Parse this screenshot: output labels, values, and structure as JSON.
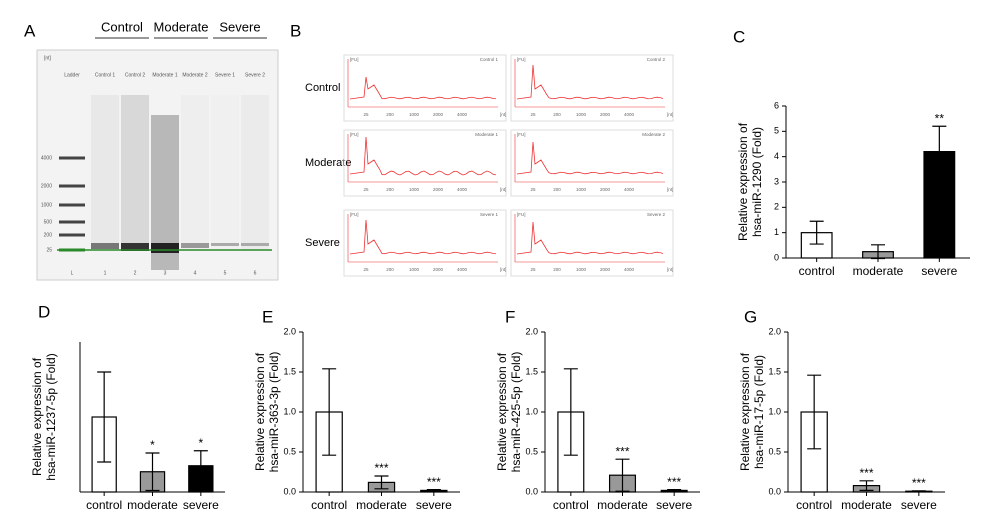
{
  "gel": {
    "label": "A",
    "unit": "[nt]",
    "groups": [
      "Control",
      "Moderate",
      "Severe"
    ],
    "lanes": [
      "Ladder",
      "Control 1",
      "Control 2",
      "Moderate 1",
      "Moderate 2",
      "Severe 1",
      "Severe 2"
    ],
    "lane_numbers": [
      "L",
      "1",
      "2",
      "3",
      "4",
      "5",
      "6"
    ],
    "ladder": [
      "4000",
      "2000",
      "1000",
      "500",
      "200",
      "25"
    ]
  },
  "traces": {
    "label": "B",
    "rows": [
      "Control",
      "Moderate",
      "Severe"
    ],
    "titles": [
      "Control 1",
      "Control 2",
      "Moderate 1",
      "Moderate 2",
      "Severe 1",
      "Severe 2"
    ],
    "y_unit": "[FU]",
    "x_unit": "[nt]",
    "x_ticks": [
      "25",
      "200",
      "1000",
      "2000",
      "4000"
    ]
  },
  "chart_data": [
    {
      "type": "bar",
      "label": "C",
      "ylabel": [
        "Relative expression of",
        "hsa-miR-1290 (Fold)"
      ],
      "categories": [
        "control",
        "moderate",
        "severe"
      ],
      "values": [
        1.0,
        0.25,
        4.2
      ],
      "errors": [
        0.45,
        0.27,
        1.0
      ],
      "colors": [
        "#ffffff",
        "#999999",
        "#000000"
      ],
      "annotations": [
        null,
        null,
        "**"
      ],
      "ylim": [
        0,
        6
      ],
      "yticks": [
        0,
        1,
        2,
        3,
        4,
        5,
        6
      ]
    },
    {
      "type": "bar",
      "label": "D",
      "ylabel": [
        "Relative expression of",
        "hsa-miR-1237-5p (Fold)"
      ],
      "categories": [
        "control",
        "moderate",
        "severe"
      ],
      "values": [
        1.0,
        0.27,
        0.35
      ],
      "errors": [
        0.6,
        0.25,
        0.2
      ],
      "colors": [
        "#ffffff",
        "#999999",
        "#000000"
      ],
      "annotations": [
        null,
        "*",
        "*"
      ],
      "ylim": [
        0,
        2
      ]
    },
    {
      "type": "bar",
      "label": "E",
      "ylabel": [
        "Relative expression of",
        "hsa-miR-363-3p (Fold)"
      ],
      "categories": [
        "control",
        "moderate",
        "severe"
      ],
      "values": [
        1.0,
        0.12,
        0.02
      ],
      "errors": [
        0.54,
        0.08,
        0.01
      ],
      "colors": [
        "#ffffff",
        "#999999",
        "#000000"
      ],
      "annotations": [
        null,
        "***",
        "***"
      ],
      "ylim": [
        0,
        2
      ],
      "yticks": [
        {
          "value": 0,
          "label": "0.0"
        },
        0.5,
        {
          "value": 1,
          "label": "1.0"
        },
        1.5,
        {
          "value": 2,
          "label": "2.0"
        }
      ]
    },
    {
      "type": "bar",
      "label": "F",
      "ylabel": [
        "Relative expression of",
        "hsa-miR-425-5p (Fold)"
      ],
      "categories": [
        "control",
        "moderate",
        "severe"
      ],
      "values": [
        1.0,
        0.21,
        0.02
      ],
      "errors": [
        0.54,
        0.2,
        0.01
      ],
      "colors": [
        "#ffffff",
        "#999999",
        "#000000"
      ],
      "annotations": [
        null,
        "***",
        "***"
      ],
      "ylim": [
        0,
        2
      ],
      "yticks": [
        {
          "value": 0,
          "label": "0.0"
        },
        0.5,
        {
          "value": 1,
          "label": "1.0"
        },
        1.5,
        {
          "value": 2,
          "label": "2.0"
        }
      ]
    },
    {
      "type": "bar",
      "label": "G",
      "ylabel": [
        "Relative expression of",
        "hsa-miR-17-5p (Fold)"
      ],
      "categories": [
        "control",
        "moderate",
        "severe"
      ],
      "values": [
        1.0,
        0.08,
        0.01
      ],
      "errors": [
        0.46,
        0.06,
        0.005
      ],
      "colors": [
        "#ffffff",
        "#999999",
        "#000000"
      ],
      "annotations": [
        null,
        "***",
        "***"
      ],
      "ylim": [
        0,
        2
      ],
      "yticks": [
        {
          "value": 0,
          "label": "0.0"
        },
        0.5,
        {
          "value": 1,
          "label": "1.0"
        },
        1.5,
        {
          "value": 2,
          "label": "2.0"
        }
      ]
    }
  ]
}
